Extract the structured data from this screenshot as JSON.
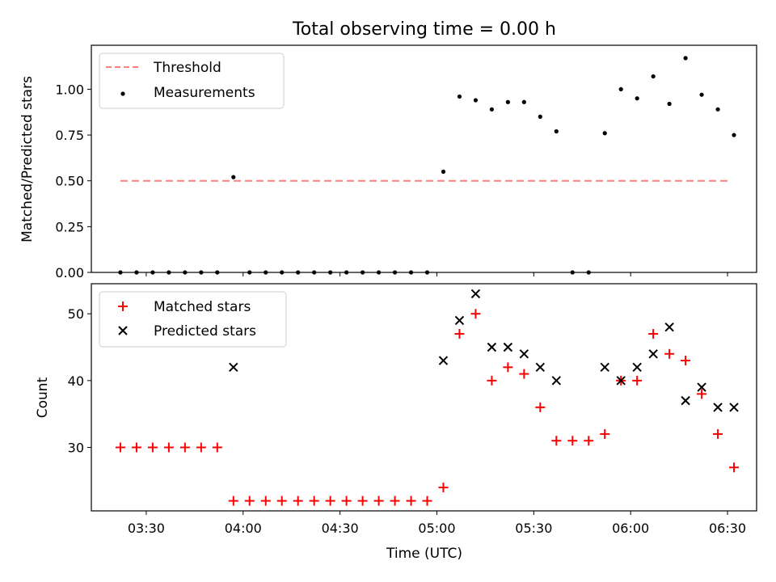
{
  "chart_data": [
    {
      "type": "scatter",
      "title": "Total observing time = 0.00 h",
      "xlabel": "",
      "ylabel": "Matched/Predicted stars",
      "xlim": [
        "03:13",
        "06:39"
      ],
      "ylim": [
        0,
        1.24
      ],
      "y_ticks": [
        "0.00",
        "0.25",
        "0.50",
        "0.75",
        "1.00"
      ],
      "legend_position": "top-left",
      "grid": false,
      "threshold": {
        "label": "Threshold",
        "value": 0.5,
        "x": [
          "03:22",
          "06:31"
        ],
        "color": "#ff7f7f",
        "style": "dashed"
      },
      "series": [
        {
          "name": "Measurements",
          "marker": "dot",
          "color": "#000000",
          "x": [
            "03:22",
            "03:27",
            "03:32",
            "03:37",
            "03:42",
            "03:47",
            "03:52",
            "03:57",
            "04:02",
            "04:07",
            "04:12",
            "04:17",
            "04:22",
            "04:27",
            "04:32",
            "04:37",
            "04:42",
            "04:47",
            "04:52",
            "04:57",
            "05:02",
            "05:07",
            "05:12",
            "05:17",
            "05:22",
            "05:27",
            "05:32",
            "05:37",
            "05:42",
            "05:47",
            "05:52",
            "05:57",
            "06:02",
            "06:07",
            "06:12",
            "06:17",
            "06:22",
            "06:27",
            "06:32"
          ],
          "y": [
            0,
            0,
            0,
            0,
            0,
            0,
            0,
            0.52,
            0,
            0,
            0,
            0,
            0,
            0,
            0,
            0,
            0,
            0,
            0,
            0,
            0.55,
            0.96,
            0.94,
            0.89,
            0.93,
            0.93,
            0.85,
            0.77,
            0,
            0,
            0.76,
            1.0,
            0.95,
            1.07,
            0.92,
            1.17,
            0.97,
            0.89,
            0.75
          ]
        }
      ]
    },
    {
      "type": "scatter",
      "title": "",
      "xlabel": "Time (UTC)",
      "ylabel": "Count",
      "xlim": [
        "03:13",
        "06:39"
      ],
      "ylim": [
        20.5,
        54.5
      ],
      "x_ticks": [
        "03:30",
        "04:00",
        "04:30",
        "05:00",
        "05:30",
        "06:00",
        "06:30"
      ],
      "y_ticks": [
        "30",
        "40",
        "50"
      ],
      "legend_position": "top-left",
      "grid": false,
      "series": [
        {
          "name": "Matched stars",
          "marker": "plus",
          "color": "#ff0000",
          "x": [
            "03:22",
            "03:27",
            "03:32",
            "03:37",
            "03:42",
            "03:47",
            "03:52",
            "03:57",
            "04:02",
            "04:07",
            "04:12",
            "04:17",
            "04:22",
            "04:27",
            "04:32",
            "04:37",
            "04:42",
            "04:47",
            "04:52",
            "04:57",
            "05:02",
            "05:07",
            "05:12",
            "05:17",
            "05:22",
            "05:27",
            "05:32",
            "05:37",
            "05:42",
            "05:47",
            "05:52",
            "05:57",
            "06:02",
            "06:07",
            "06:12",
            "06:17",
            "06:22",
            "06:27",
            "06:32"
          ],
          "y": [
            30,
            30,
            30,
            30,
            30,
            30,
            30,
            22,
            22,
            22,
            22,
            22,
            22,
            22,
            22,
            22,
            22,
            22,
            22,
            22,
            24,
            47,
            50,
            40,
            42,
            41,
            36,
            31,
            31,
            31,
            32,
            40,
            40,
            47,
            44,
            43,
            38,
            32,
            27
          ]
        },
        {
          "name": "Predicted stars",
          "marker": "x",
          "color": "#000000",
          "x": [
            "03:57",
            "05:02",
            "05:07",
            "05:12",
            "05:17",
            "05:22",
            "05:27",
            "05:32",
            "05:37",
            "05:52",
            "05:57",
            "06:02",
            "06:07",
            "06:12",
            "06:17",
            "06:22",
            "06:27",
            "06:32"
          ],
          "y": [
            42,
            43,
            49,
            53,
            45,
            45,
            44,
            42,
            40,
            42,
            40,
            42,
            44,
            48,
            37,
            39,
            36,
            36
          ]
        }
      ]
    }
  ]
}
